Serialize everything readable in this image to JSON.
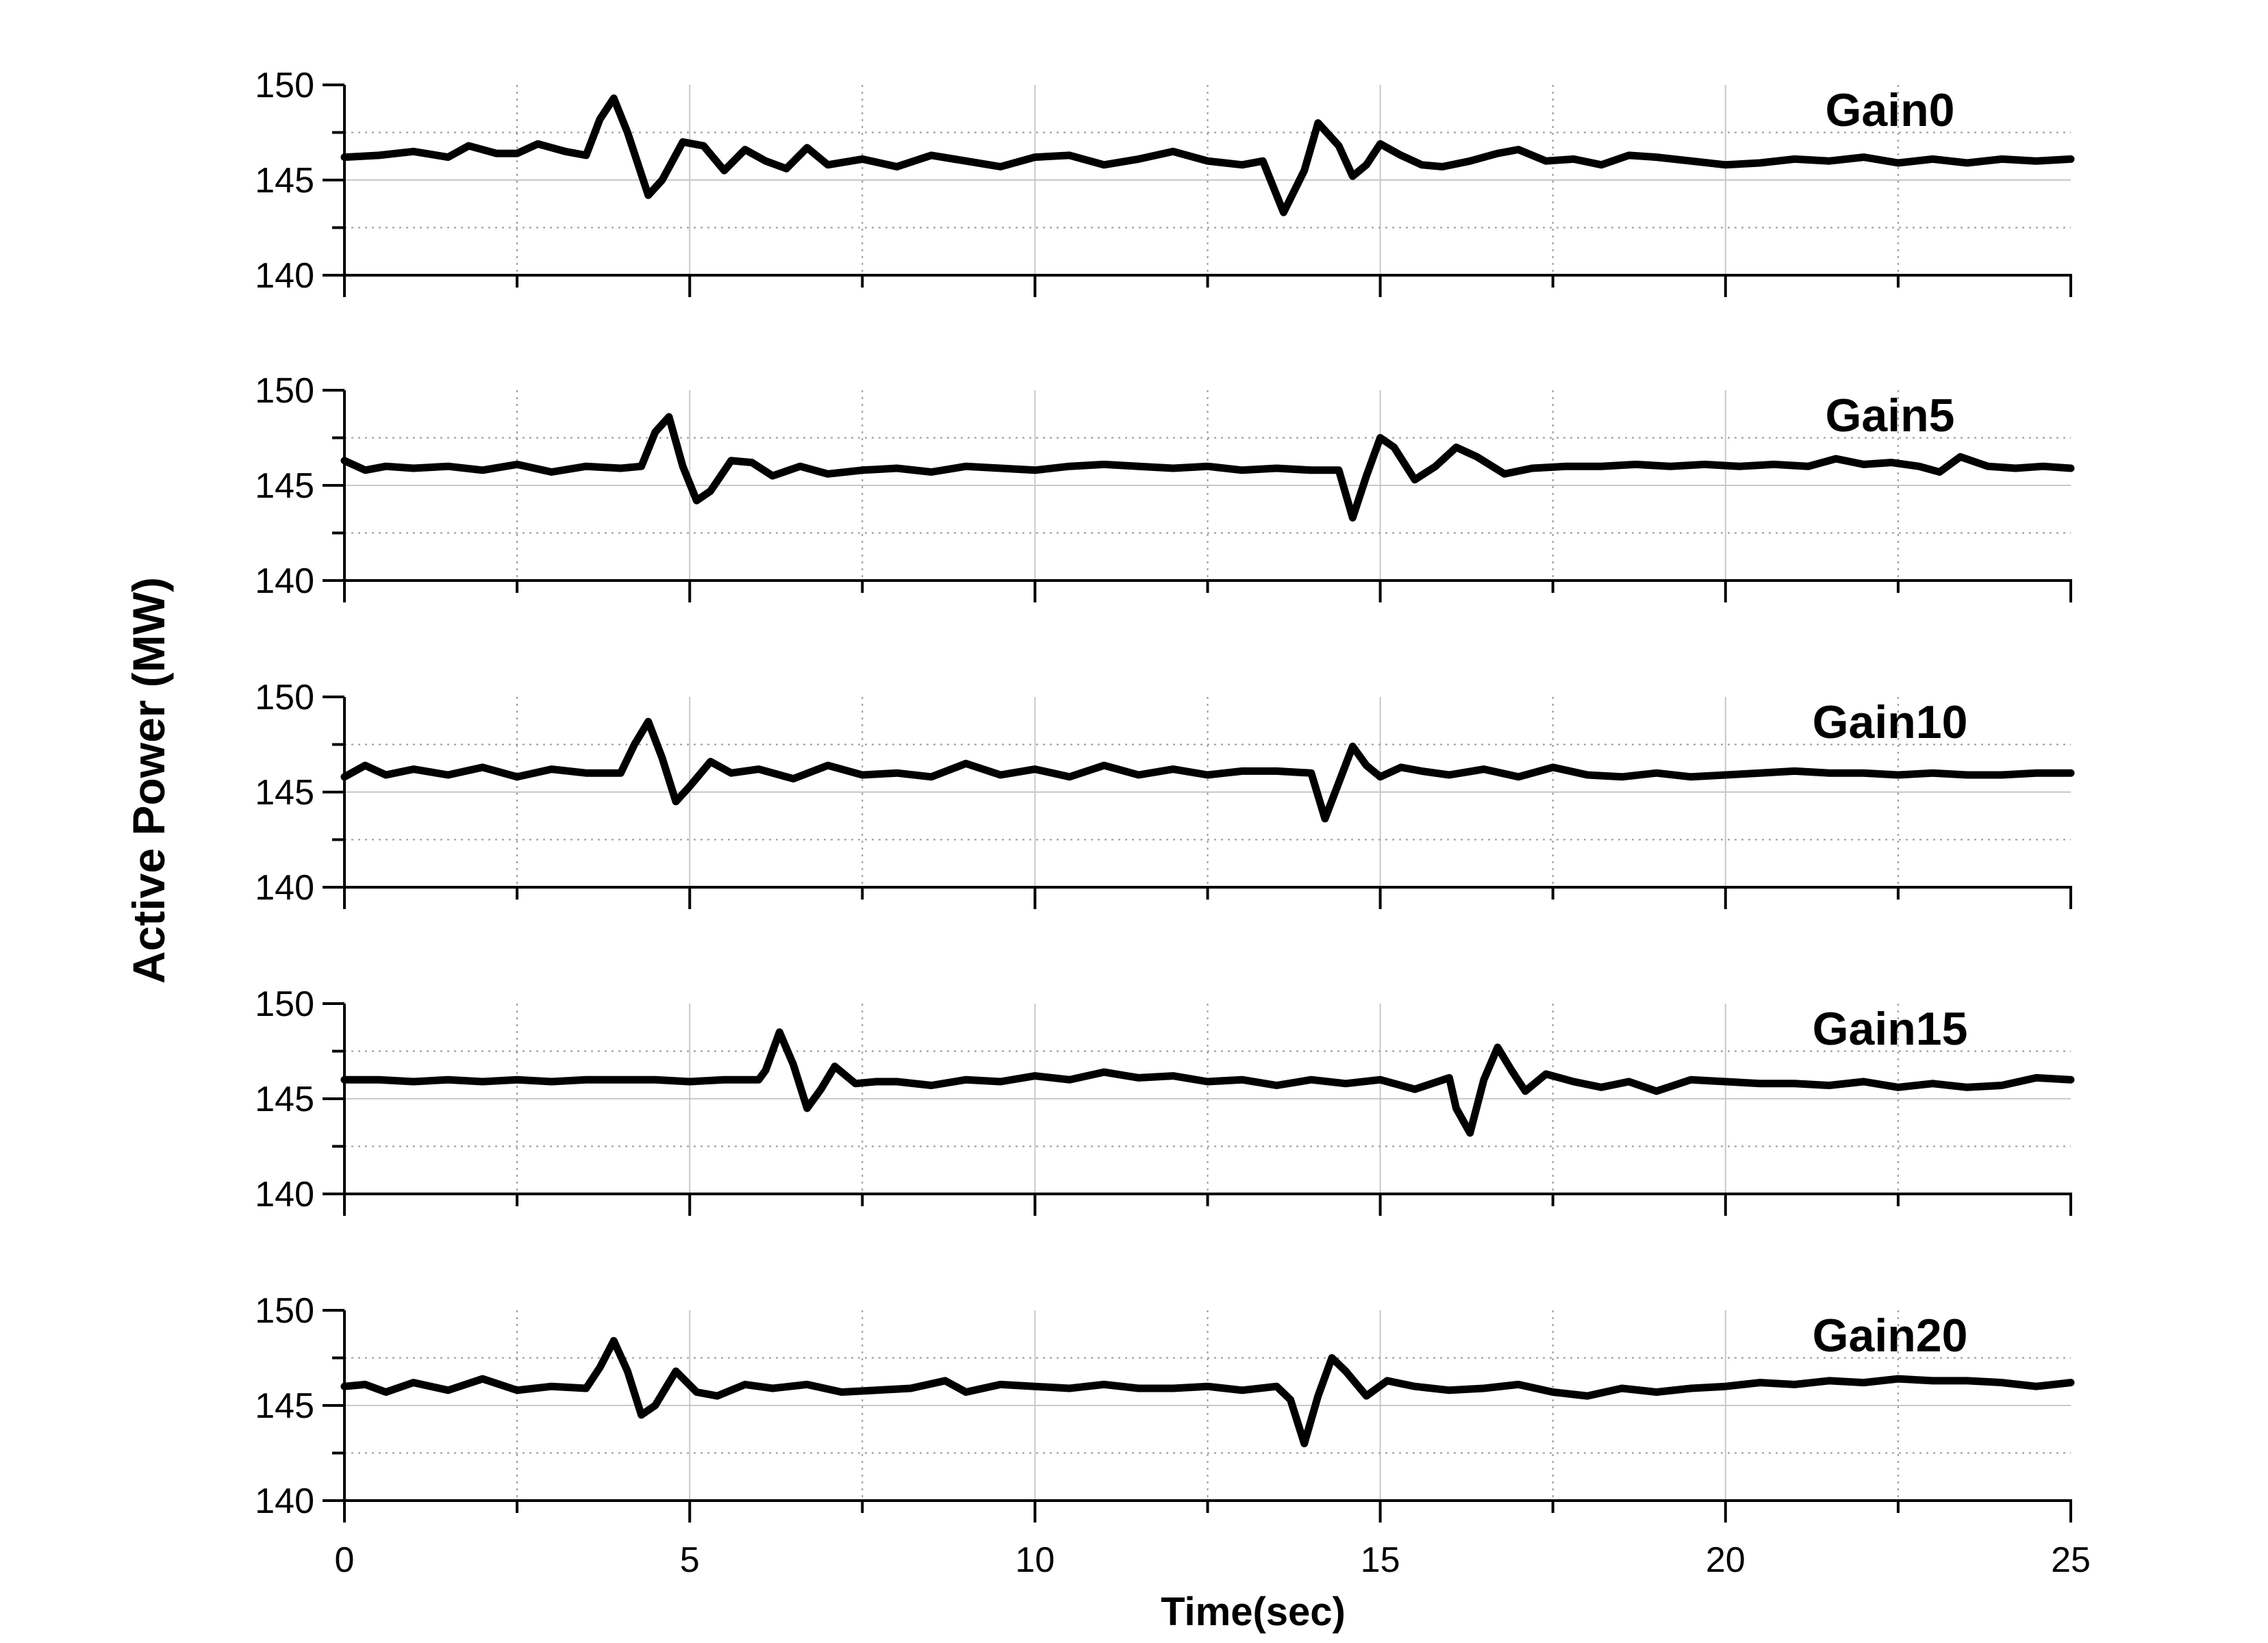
{
  "chart_data": {
    "type": "line",
    "xlabel": "Time(sec)",
    "ylabel": "Active Power (MW)",
    "xlim": [
      0,
      25
    ],
    "ylim": [
      140,
      150
    ],
    "x_ticks": [
      "0",
      "5",
      "10",
      "15",
      "20",
      "25"
    ],
    "y_ticks": [
      "140",
      "145",
      "150"
    ],
    "grid": true,
    "panels": [
      {
        "label": "Gain0",
        "x": [
          0,
          0.5,
          1,
          1.5,
          1.8,
          2.2,
          2.5,
          2.8,
          3.2,
          3.5,
          3.7,
          3.9,
          4.1,
          4.4,
          4.6,
          4.9,
          5.2,
          5.5,
          5.8,
          6.1,
          6.4,
          6.7,
          7,
          7.5,
          8,
          8.5,
          9,
          9.5,
          10,
          10.5,
          11,
          11.5,
          12,
          12.5,
          13,
          13.3,
          13.6,
          13.9,
          14.1,
          14.4,
          14.6,
          14.8,
          15,
          15.3,
          15.6,
          15.9,
          16.3,
          16.7,
          17,
          17.4,
          17.8,
          18.2,
          18.6,
          19,
          19.5,
          20,
          20.5,
          21,
          21.5,
          22,
          22.5,
          23,
          23.5,
          24,
          24.5,
          25
        ],
        "y": [
          146.2,
          146.3,
          146.5,
          146.2,
          146.8,
          146.4,
          146.4,
          146.9,
          146.5,
          146.3,
          148.2,
          149.3,
          147.5,
          144.2,
          145.0,
          147.0,
          146.8,
          145.5,
          146.6,
          146.0,
          145.6,
          146.7,
          145.8,
          146.1,
          145.7,
          146.3,
          146.0,
          145.7,
          146.2,
          146.3,
          145.8,
          146.1,
          146.5,
          146.0,
          145.8,
          146.0,
          143.3,
          145.5,
          148.0,
          146.8,
          145.2,
          145.8,
          146.9,
          146.3,
          145.8,
          145.7,
          146.0,
          146.4,
          146.6,
          146.0,
          146.1,
          145.8,
          146.3,
          146.2,
          146.0,
          145.8,
          145.9,
          146.1,
          146.0,
          146.2,
          145.9,
          146.1,
          145.9,
          146.1,
          146.0,
          146.1
        ]
      },
      {
        "label": "Gain5",
        "x": [
          0,
          0.3,
          0.6,
          1,
          1.5,
          2,
          2.5,
          3,
          3.5,
          4,
          4.3,
          4.5,
          4.7,
          4.9,
          5.1,
          5.3,
          5.6,
          5.9,
          6.2,
          6.6,
          7,
          7.5,
          8,
          8.5,
          9,
          9.5,
          10,
          10.5,
          11,
          11.5,
          12,
          12.5,
          13,
          13.5,
          14,
          14.4,
          14.6,
          14.8,
          15,
          15.2,
          15.5,
          15.8,
          16.1,
          16.4,
          16.8,
          17.2,
          17.7,
          18.2,
          18.7,
          19.2,
          19.7,
          20.2,
          20.7,
          21.2,
          21.6,
          22,
          22.4,
          22.8,
          23.1,
          23.4,
          23.8,
          24.2,
          24.6,
          25
        ],
        "y": [
          146.3,
          145.8,
          146.0,
          145.9,
          146.0,
          145.8,
          146.1,
          145.7,
          146.0,
          145.9,
          146.0,
          147.8,
          148.6,
          146.0,
          144.2,
          144.7,
          146.3,
          146.2,
          145.5,
          146.0,
          145.6,
          145.8,
          145.9,
          145.7,
          146.0,
          145.9,
          145.8,
          146.0,
          146.1,
          146.0,
          145.9,
          146.0,
          145.8,
          145.9,
          145.8,
          145.8,
          143.3,
          145.5,
          147.5,
          147.0,
          145.3,
          146.0,
          147.0,
          146.5,
          145.6,
          145.9,
          146.0,
          146.0,
          146.1,
          146.0,
          146.1,
          146.0,
          146.1,
          146.0,
          146.4,
          146.1,
          146.2,
          146.0,
          145.7,
          146.5,
          146.0,
          145.9,
          146.0,
          145.9
        ]
      },
      {
        "label": "Gain10",
        "x": [
          0,
          0.3,
          0.6,
          1,
          1.5,
          2,
          2.5,
          3,
          3.5,
          4,
          4.2,
          4.4,
          4.6,
          4.8,
          5,
          5.3,
          5.6,
          6,
          6.5,
          7,
          7.5,
          8,
          8.5,
          9,
          9.5,
          10,
          10.5,
          11,
          11.5,
          12,
          12.5,
          13,
          13.5,
          14,
          14.2,
          14.4,
          14.6,
          14.8,
          15,
          15.3,
          15.6,
          16,
          16.5,
          17,
          17.5,
          18,
          18.5,
          19,
          19.5,
          20,
          20.5,
          21,
          21.5,
          22,
          22.5,
          23,
          23.5,
          24,
          24.5,
          25
        ],
        "y": [
          145.8,
          146.4,
          145.9,
          146.2,
          145.9,
          146.3,
          145.8,
          146.2,
          146.0,
          146.0,
          147.5,
          148.7,
          146.8,
          144.5,
          145.3,
          146.6,
          146.0,
          146.2,
          145.7,
          146.4,
          145.9,
          146.0,
          145.8,
          146.5,
          145.9,
          146.2,
          145.8,
          146.4,
          145.9,
          146.2,
          145.9,
          146.1,
          146.1,
          146.0,
          143.6,
          145.5,
          147.4,
          146.4,
          145.8,
          146.3,
          146.1,
          145.9,
          146.2,
          145.8,
          146.3,
          145.9,
          145.8,
          146.0,
          145.8,
          145.9,
          146.0,
          146.1,
          146.0,
          146.0,
          145.9,
          146.0,
          145.9,
          145.9,
          146.0,
          146.0
        ]
      },
      {
        "label": "Gain15",
        "x": [
          0,
          0.5,
          1,
          1.5,
          2,
          2.5,
          3,
          3.5,
          4,
          4.5,
          5,
          5.5,
          6,
          6.1,
          6.3,
          6.5,
          6.7,
          6.9,
          7.1,
          7.4,
          7.7,
          8,
          8.5,
          9,
          9.5,
          10,
          10.5,
          11,
          11.5,
          12,
          12.5,
          13,
          13.5,
          14,
          14.5,
          15,
          15.5,
          16,
          16.1,
          16.3,
          16.5,
          16.7,
          16.9,
          17.1,
          17.4,
          17.8,
          18.2,
          18.6,
          19,
          19.5,
          20,
          20.5,
          21,
          21.5,
          22,
          22.5,
          23,
          23.5,
          24,
          24.5,
          25
        ],
        "y": [
          146.0,
          146.0,
          145.9,
          146.0,
          145.9,
          146.0,
          145.9,
          146.0,
          146.0,
          146.0,
          145.9,
          146.0,
          146.0,
          146.5,
          148.5,
          146.8,
          144.5,
          145.5,
          146.7,
          145.8,
          145.9,
          145.9,
          145.7,
          146.0,
          145.9,
          146.2,
          146.0,
          146.4,
          146.1,
          146.2,
          145.9,
          146.0,
          145.7,
          146.0,
          145.8,
          146.0,
          145.5,
          146.1,
          144.5,
          143.2,
          146.0,
          147.7,
          146.5,
          145.4,
          146.3,
          145.9,
          145.6,
          145.9,
          145.4,
          146.0,
          145.9,
          145.8,
          145.8,
          145.7,
          145.9,
          145.6,
          145.8,
          145.6,
          145.7,
          146.1,
          146.0
        ]
      },
      {
        "label": "Gain20",
        "x": [
          0,
          0.3,
          0.6,
          1,
          1.5,
          2,
          2.5,
          3,
          3.5,
          3.7,
          3.9,
          4.1,
          4.3,
          4.5,
          4.8,
          5.1,
          5.4,
          5.8,
          6.2,
          6.7,
          7.2,
          7.7,
          8.2,
          8.7,
          9,
          9.5,
          10,
          10.5,
          11,
          11.5,
          12,
          12.5,
          13,
          13.5,
          13.7,
          13.9,
          14.1,
          14.3,
          14.5,
          14.8,
          15.1,
          15.5,
          16,
          16.5,
          17,
          17.5,
          18,
          18.5,
          19,
          19.5,
          20,
          20.5,
          21,
          21.5,
          22,
          22.5,
          23,
          23.5,
          24,
          24.5,
          25
        ],
        "y": [
          146.0,
          146.1,
          145.7,
          146.2,
          145.8,
          146.4,
          145.8,
          146.0,
          145.9,
          147.0,
          148.4,
          146.8,
          144.5,
          145.0,
          146.8,
          145.7,
          145.5,
          146.1,
          145.9,
          146.1,
          145.7,
          145.8,
          145.9,
          146.3,
          145.7,
          146.1,
          146.0,
          145.9,
          146.1,
          145.9,
          145.9,
          146.0,
          145.8,
          146.0,
          145.3,
          143.0,
          145.5,
          147.5,
          146.8,
          145.5,
          146.3,
          146.0,
          145.8,
          145.9,
          146.1,
          145.7,
          145.5,
          145.9,
          145.7,
          145.9,
          146.0,
          146.2,
          146.1,
          146.3,
          146.2,
          146.4,
          146.3,
          146.3,
          146.2,
          146.0,
          146.2
        ]
      }
    ]
  }
}
